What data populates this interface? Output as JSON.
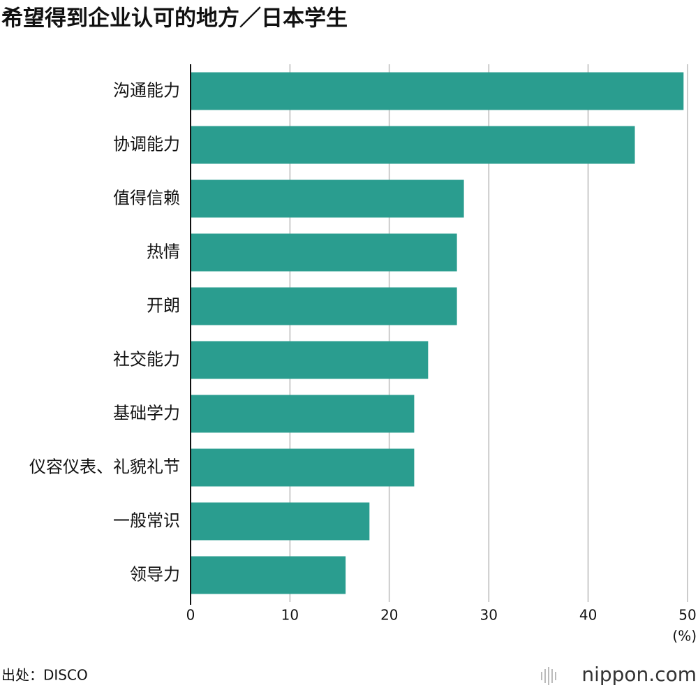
{
  "chart_data": {
    "type": "bar",
    "orientation": "horizontal",
    "title": "希望得到企业认可的地方／日本学生",
    "categories": [
      "沟通能力",
      "协调能力",
      "值得信赖",
      "热情",
      "开朗",
      "社交能力",
      "基础学力",
      "仪容仪表、礼貌礼节",
      "一般常识",
      "领导力"
    ],
    "values": [
      49.6,
      44.7,
      27.5,
      26.8,
      26.8,
      23.9,
      22.5,
      22.5,
      18.0,
      15.6
    ],
    "color": "#2a9d8f",
    "xlim": [
      0,
      50
    ],
    "xticks": [
      0,
      10,
      20,
      30,
      40,
      50
    ],
    "grid": true,
    "x_unit": "(%)",
    "source": "出处：DISCO",
    "logo": "nippon.com"
  }
}
